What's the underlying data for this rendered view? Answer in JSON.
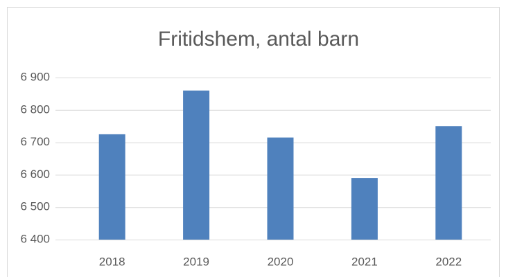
{
  "chart_data": {
    "type": "bar",
    "title": "Fritidshem, antal barn",
    "categories": [
      "2018",
      "2019",
      "2020",
      "2021",
      "2022"
    ],
    "values": [
      6725,
      6860,
      6715,
      6590,
      6750
    ],
    "color": "#4f81bd",
    "ylim": [
      6400,
      6900
    ],
    "yticks": [
      {
        "value": 6400,
        "label": "6 400"
      },
      {
        "value": 6500,
        "label": "6 500"
      },
      {
        "value": 6600,
        "label": "6 600"
      },
      {
        "value": 6700,
        "label": "6 700"
      },
      {
        "value": 6800,
        "label": "6 800"
      },
      {
        "value": 6900,
        "label": "6 900"
      }
    ],
    "grid": true
  }
}
